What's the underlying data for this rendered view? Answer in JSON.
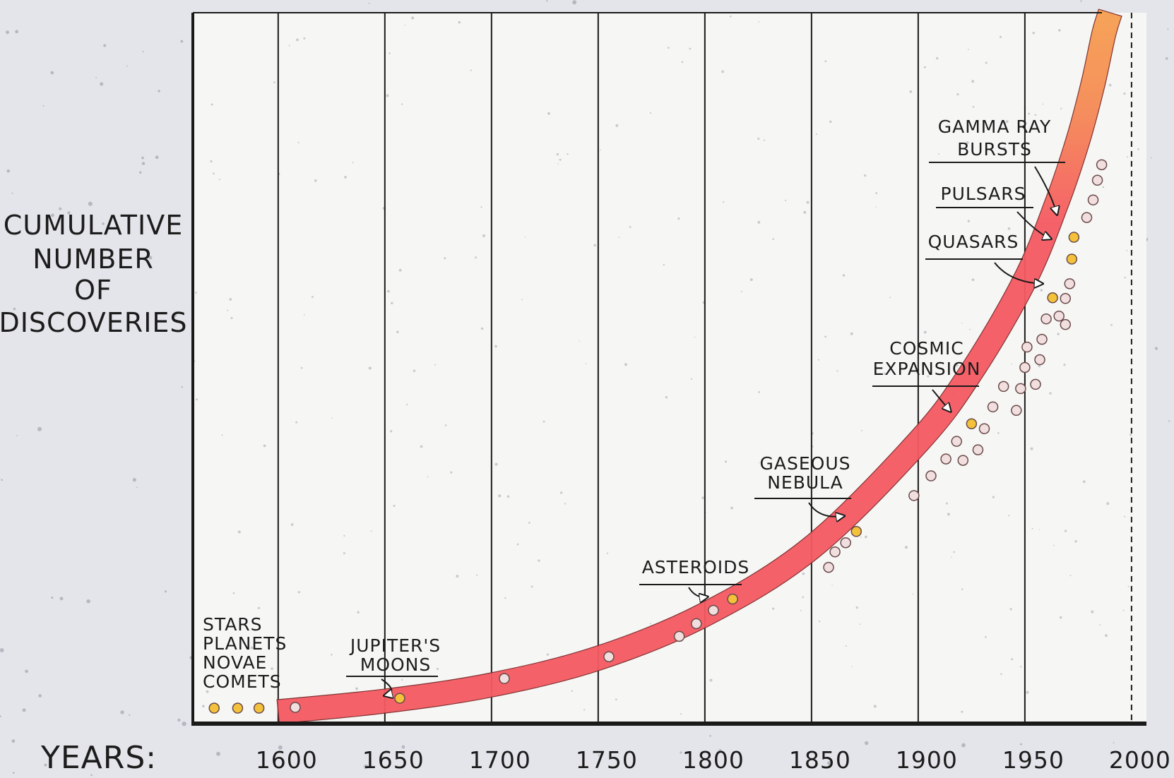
{
  "chart_data": {
    "type": "scatter",
    "ylabel": [
      "CUMULATIVE",
      "NUMBER",
      "OF",
      "DISCOVERIES"
    ],
    "xlabel": "YEARS:",
    "xlim": [
      1560,
      2005
    ],
    "ylim": [
      0,
      100
    ],
    "x_ticks": [
      "1600",
      "1650",
      "1700",
      "1750",
      "1800",
      "1850",
      "1900",
      "1950",
      "2000"
    ],
    "grid": true,
    "colors": {
      "band": "#f55a62",
      "band_top": "#f7a050",
      "dot_yellow": "#f4c23a",
      "dot_white": "#f1dede",
      "dot_stroke": "#6a4a4a",
      "grid": "#1a1a1a",
      "background": "#e4e5ea",
      "plot": "#f6f6f4"
    },
    "trend": [
      {
        "x": 1600,
        "y": 0.7
      },
      {
        "x": 1650,
        "y": 2.2
      },
      {
        "x": 1700,
        "y": 4.5
      },
      {
        "x": 1750,
        "y": 8.3
      },
      {
        "x": 1800,
        "y": 14.5
      },
      {
        "x": 1850,
        "y": 24
      },
      {
        "x": 1900,
        "y": 39
      },
      {
        "x": 1925,
        "y": 49
      },
      {
        "x": 1950,
        "y": 62
      },
      {
        "x": 1965,
        "y": 73
      },
      {
        "x": 1975,
        "y": 82
      },
      {
        "x": 1982,
        "y": 90
      },
      {
        "x": 1987,
        "y": 97
      },
      {
        "x": 1990,
        "y": 100
      }
    ],
    "series": [
      {
        "name": "",
        "color": "yellow",
        "points": [
          {
            "x": 1570,
            "y": 1.2
          },
          {
            "x": 1581,
            "y": 1.2
          },
          {
            "x": 1591,
            "y": 1.2
          },
          {
            "x": 1657,
            "y": 2.6
          },
          {
            "x": 1813,
            "y": 16.7
          },
          {
            "x": 1871,
            "y": 26.3
          },
          {
            "x": 1925,
            "y": 41.6
          },
          {
            "x": 1963,
            "y": 59.5
          },
          {
            "x": 1972,
            "y": 65.0
          },
          {
            "x": 1973,
            "y": 68.1
          }
        ]
      },
      {
        "name": "",
        "color": "white",
        "points": [
          {
            "x": 1608,
            "y": 1.3
          },
          {
            "x": 1706,
            "y": 5.4
          },
          {
            "x": 1755,
            "y": 8.5
          },
          {
            "x": 1788,
            "y": 11.4
          },
          {
            "x": 1796,
            "y": 13.2
          },
          {
            "x": 1804,
            "y": 15.1
          },
          {
            "x": 1858,
            "y": 21.2
          },
          {
            "x": 1861,
            "y": 23.4
          },
          {
            "x": 1866,
            "y": 24.7
          },
          {
            "x": 1898,
            "y": 31.4
          },
          {
            "x": 1906,
            "y": 34.2
          },
          {
            "x": 1913,
            "y": 36.6
          },
          {
            "x": 1918,
            "y": 39.1
          },
          {
            "x": 1921,
            "y": 36.4
          },
          {
            "x": 1928,
            "y": 37.9
          },
          {
            "x": 1931,
            "y": 40.9
          },
          {
            "x": 1935,
            "y": 44.0
          },
          {
            "x": 1940,
            "y": 46.9
          },
          {
            "x": 1946,
            "y": 43.5
          },
          {
            "x": 1948,
            "y": 46.6
          },
          {
            "x": 1950,
            "y": 49.6
          },
          {
            "x": 1951,
            "y": 52.5
          },
          {
            "x": 1955,
            "y": 47.2
          },
          {
            "x": 1957,
            "y": 50.7
          },
          {
            "x": 1958,
            "y": 53.6
          },
          {
            "x": 1960,
            "y": 56.5
          },
          {
            "x": 1966,
            "y": 56.9
          },
          {
            "x": 1969,
            "y": 59.4
          },
          {
            "x": 1969,
            "y": 55.7
          },
          {
            "x": 1971,
            "y": 61.5
          },
          {
            "x": 1979,
            "y": 70.9
          },
          {
            "x": 1982,
            "y": 73.4
          },
          {
            "x": 1984,
            "y": 76.2
          },
          {
            "x": 1986,
            "y": 78.4
          }
        ]
      }
    ],
    "annotations": [
      {
        "id": "stars",
        "lines": [
          "STARS",
          "PLANETS",
          "NOVAE",
          "COMETS"
        ]
      },
      {
        "id": "jupiter",
        "lines": [
          "JUPITER'S",
          "MOONS"
        ],
        "x": 1650,
        "y": 3.0
      },
      {
        "id": "asteroids",
        "lines": [
          "ASTEROIDS"
        ],
        "x": 1801,
        "y": 17.0
      },
      {
        "id": "nebula",
        "lines": [
          "GASEOUS",
          "NEBULA"
        ],
        "x": 1865,
        "y": 28.5
      },
      {
        "id": "cosmic",
        "lines": [
          "COSMIC",
          "EXPANSION"
        ],
        "x": 1915,
        "y": 43.4
      },
      {
        "id": "quasars",
        "lines": [
          "QUASARS"
        ],
        "x": 1958,
        "y": 61.5
      },
      {
        "id": "pulsars",
        "lines": [
          "PULSARS"
        ],
        "x": 1962,
        "y": 67.9
      },
      {
        "id": "gamma",
        "lines": [
          "GAMMA RAY",
          "BURSTS"
        ],
        "x": 1965,
        "y": 71.4
      }
    ]
  }
}
